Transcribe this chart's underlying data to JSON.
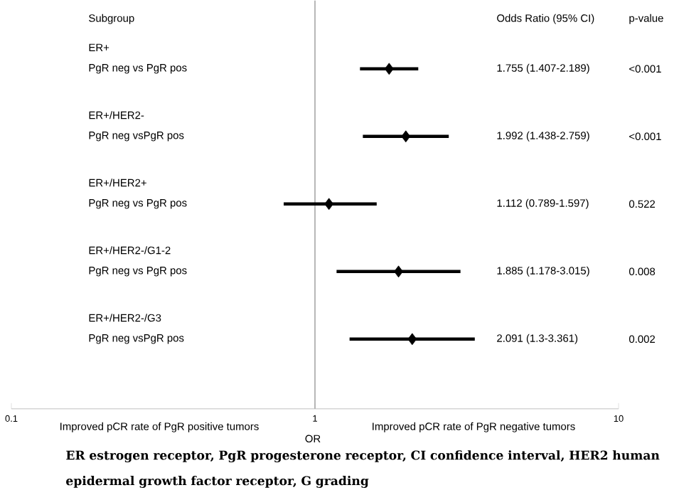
{
  "chart_data": {
    "type": "scatter",
    "orientation": "horizontal",
    "log": "x",
    "marker": "diamond",
    "color": "#000000",
    "categories": [
      "ER+",
      "ER+/HER2-",
      "ER+/HER2+",
      "ER+/HER2-/G1-2",
      "ER+/HER2-/G3"
    ],
    "values": [
      1.755,
      1.992,
      1.112,
      1.885,
      2.091
    ],
    "errors": [
      [
        1.407,
        2.189
      ],
      [
        1.438,
        2.759
      ],
      [
        0.789,
        1.597
      ],
      [
        1.178,
        3.015
      ],
      [
        1.3,
        3.361
      ]
    ],
    "xlim": [
      0.1,
      10
    ],
    "xticks": [
      0.1,
      1,
      10
    ],
    "xlabel": "OR",
    "ref_lines": [
      {
        "axis": "x",
        "value": 1,
        "color": "#a6a6a6"
      }
    ],
    "annotations": [
      "Subgroup",
      "Odds Ratio (95% CI)",
      "p-value",
      "PgR neg vs PgR pos",
      "PgR neg vsPgR pos",
      "PgR neg vs PgR pos",
      "PgR neg vs PgR pos",
      "PgR neg vsPgR pos",
      "1.755 (1.407-2.189)",
      "1.992 (1.438-2.759)",
      "1.112 (0.789-1.597)",
      "1.885 (1.178-3.015)",
      "2.091 (1.3-3.361)",
      "<0.001",
      "<0.001",
      "0.522",
      "0.008",
      "0.002",
      "Improved pCR rate of PgR positive tumors",
      "Improved pCR rate of PgR negative tumors",
      "ER estrogen receptor, PgR progesterone receptor, CI confidence interval, HER2 human epidermal growth factor receptor, G grading"
    ]
  }
}
